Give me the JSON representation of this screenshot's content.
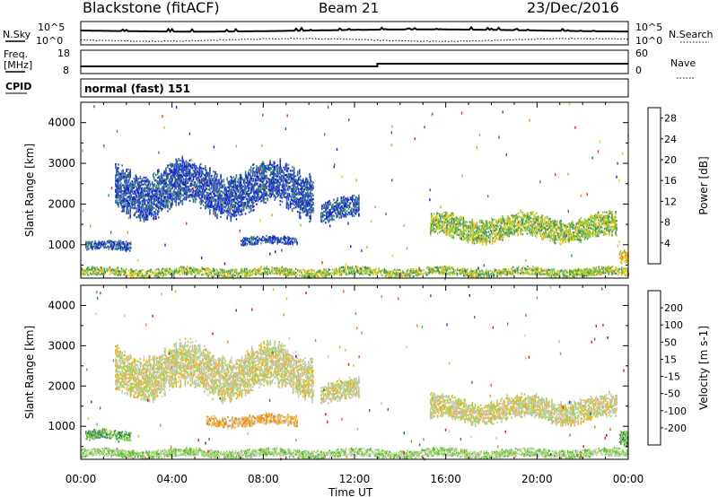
{
  "header": {
    "station": "Blackstone (fitACF)",
    "beam": "Beam 21",
    "date": "23/Dec/2016"
  },
  "noise_panel": {
    "left_label": "N.Sky",
    "right_label": "N.Search",
    "ytick_top": "10^5",
    "ytick_bottom": "10^0"
  },
  "freq_panel": {
    "left_label_line1": "Freq.",
    "left_label_line2": "[MHz]",
    "right_label": "Nave",
    "left_ticks": [
      "18",
      "8"
    ],
    "right_ticks": [
      "60",
      "0"
    ]
  },
  "cpid": {
    "label": "CPID",
    "text": "normal (fast) 151"
  },
  "chart_data": [
    {
      "type": "heatmap",
      "title": "",
      "ylabel": "Slant Range [km]",
      "xlabel": "",
      "ylim": [
        180,
        4500
      ],
      "y_ticks": [
        1000,
        2000,
        3000,
        4000
      ],
      "x_ticks": [
        "00:00",
        "04:00",
        "08:00",
        "12:00",
        "16:00",
        "20:00",
        "00:00"
      ],
      "colorbar_label": "Power [dB]",
      "colorbar_ticks": [
        4,
        8,
        12,
        16,
        20,
        24,
        28
      ],
      "colorbar_colors": [
        "#1a1adc",
        "#2f56b8",
        "#3e8e6c",
        "#8ec83a",
        "#f2c21a",
        "#f08a1a",
        "#e82818"
      ],
      "colorbar_range": [
        0,
        30
      ],
      "echo_regions": [
        {
          "t_start": 1.5,
          "t_end": 10.2,
          "r_min": 1600,
          "r_max": 3100,
          "level": 1
        },
        {
          "t_start": 0.2,
          "t_end": 2.2,
          "r_min": 800,
          "r_max": 1100,
          "level": 1
        },
        {
          "t_start": 7.0,
          "t_end": 9.5,
          "r_min": 950,
          "r_max": 1200,
          "level": 1
        },
        {
          "t_start": 10.5,
          "t_end": 12.2,
          "r_min": 1500,
          "r_max": 2200,
          "level": 1
        },
        {
          "t_start": 15.3,
          "t_end": 23.5,
          "r_min": 1000,
          "r_max": 1800,
          "level": 3
        },
        {
          "t_start": 23.6,
          "t_end": 24.0,
          "r_min": 400,
          "r_max": 900,
          "level": 4
        },
        {
          "t_start": 0.0,
          "t_end": 24.0,
          "r_min": 180,
          "r_max": 450,
          "level": 3
        }
      ]
    },
    {
      "type": "heatmap",
      "title": "",
      "ylabel": "Slant Range [km]",
      "xlabel": "Time UT",
      "ylim": [
        180,
        4500
      ],
      "y_ticks": [
        1000,
        2000,
        3000,
        4000
      ],
      "x_ticks": [
        "00:00",
        "04:00",
        "08:00",
        "12:00",
        "16:00",
        "20:00",
        "00:00"
      ],
      "colorbar_label": "Velocity [m s-1]",
      "colorbar_ticks": [
        "200",
        "100",
        "50",
        "15",
        "-15",
        "-50",
        "-100",
        "-200"
      ],
      "colorbar_colors": [
        "#2038a8",
        "#2f7a5a",
        "#5ab83a",
        "#98d858",
        "#c8c8c0",
        "#f2b020",
        "#f08018",
        "#e85010",
        "#e80f0f"
      ],
      "echo_regions": [
        {
          "t_start": 1.5,
          "t_end": 10.2,
          "r_min": 1600,
          "r_max": 3100,
          "level": 4
        },
        {
          "t_start": 0.2,
          "t_end": 2.2,
          "r_min": 600,
          "r_max": 900,
          "level": 2
        },
        {
          "t_start": 5.5,
          "t_end": 9.5,
          "r_min": 950,
          "r_max": 1300,
          "level": 5
        },
        {
          "t_start": 10.5,
          "t_end": 12.2,
          "r_min": 1500,
          "r_max": 2200,
          "level": 4
        },
        {
          "t_start": 15.3,
          "t_end": 23.5,
          "r_min": 1000,
          "r_max": 1800,
          "level": 4
        },
        {
          "t_start": 23.6,
          "t_end": 24.0,
          "r_min": 400,
          "r_max": 900,
          "level": 2
        },
        {
          "t_start": 0.0,
          "t_end": 24.0,
          "r_min": 180,
          "r_max": 450,
          "level": 3
        }
      ]
    }
  ]
}
